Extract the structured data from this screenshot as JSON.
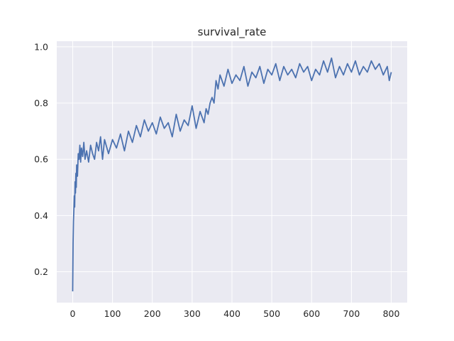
{
  "chart_data": {
    "type": "line",
    "title": "survival_rate",
    "xlabel": "",
    "ylabel": "",
    "xlim": [
      -40,
      840
    ],
    "ylim": [
      0.09,
      1.02
    ],
    "x_ticks": [
      0,
      100,
      200,
      300,
      400,
      500,
      600,
      700,
      800
    ],
    "y_ticks": [
      0.2,
      0.4,
      0.6,
      0.8,
      1.0
    ],
    "x_tick_labels": [
      "0",
      "100",
      "200",
      "300",
      "400",
      "500",
      "600",
      "700",
      "800"
    ],
    "y_tick_labels": [
      "0.2",
      "0.4",
      "0.6",
      "0.8",
      "1.0"
    ],
    "grid": true,
    "background": "#eaeaf2",
    "line_color": "#4c72b0",
    "series": [
      {
        "x": [
          0,
          1,
          2,
          3,
          4,
          5,
          6,
          7,
          8,
          9,
          10,
          12,
          14,
          16,
          18,
          20,
          22,
          25,
          28,
          31,
          35,
          40,
          45,
          50,
          55,
          60,
          65,
          70,
          75,
          80,
          90,
          100,
          110,
          120,
          130,
          140,
          150,
          160,
          170,
          180,
          190,
          200,
          210,
          220,
          230,
          240,
          250,
          260,
          270,
          280,
          290,
          300,
          310,
          320,
          330,
          335,
          340,
          345,
          350,
          355,
          360,
          365,
          370,
          380,
          390,
          400,
          410,
          420,
          430,
          440,
          450,
          460,
          470,
          480,
          490,
          500,
          510,
          520,
          530,
          540,
          550,
          560,
          570,
          580,
          590,
          600,
          610,
          620,
          630,
          640,
          650,
          660,
          670,
          680,
          690,
          700,
          710,
          720,
          730,
          740,
          750,
          760,
          770,
          780,
          790,
          795,
          800
        ],
        "y": [
          0.13,
          0.3,
          0.38,
          0.42,
          0.47,
          0.43,
          0.52,
          0.48,
          0.55,
          0.5,
          0.58,
          0.54,
          0.62,
          0.6,
          0.65,
          0.59,
          0.64,
          0.61,
          0.66,
          0.6,
          0.63,
          0.59,
          0.65,
          0.62,
          0.6,
          0.66,
          0.63,
          0.68,
          0.6,
          0.67,
          0.62,
          0.67,
          0.64,
          0.69,
          0.63,
          0.7,
          0.66,
          0.72,
          0.68,
          0.74,
          0.7,
          0.73,
          0.69,
          0.75,
          0.71,
          0.73,
          0.68,
          0.76,
          0.7,
          0.74,
          0.72,
          0.79,
          0.71,
          0.77,
          0.73,
          0.78,
          0.76,
          0.8,
          0.82,
          0.8,
          0.88,
          0.85,
          0.9,
          0.86,
          0.92,
          0.87,
          0.9,
          0.88,
          0.93,
          0.86,
          0.91,
          0.89,
          0.93,
          0.87,
          0.92,
          0.9,
          0.94,
          0.88,
          0.93,
          0.9,
          0.92,
          0.89,
          0.94,
          0.91,
          0.93,
          0.88,
          0.92,
          0.9,
          0.95,
          0.91,
          0.96,
          0.89,
          0.93,
          0.9,
          0.94,
          0.91,
          0.95,
          0.9,
          0.93,
          0.91,
          0.95,
          0.92,
          0.94,
          0.9,
          0.93,
          0.88,
          0.91
        ]
      }
    ]
  }
}
